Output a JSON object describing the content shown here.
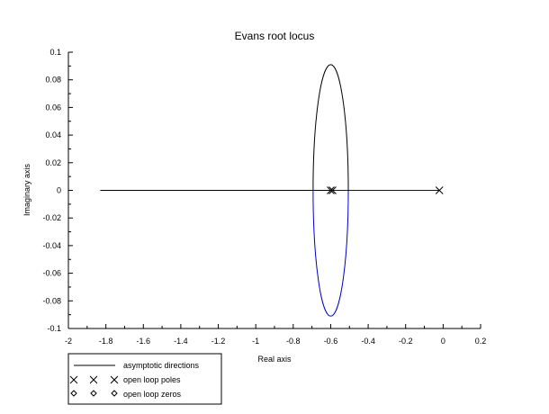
{
  "chart_data": {
    "type": "line",
    "title": "Evans root locus",
    "xlabel": "Real axis",
    "ylabel": "Imaginary axis",
    "xlim": [
      -2,
      0.2
    ],
    "ylim": [
      -0.1,
      0.1
    ],
    "x_ticks": [
      -2,
      -1.8,
      -1.6,
      -1.4,
      -1.2,
      -1,
      -0.8,
      -0.6,
      -0.4,
      -0.2,
      0,
      0.2
    ],
    "x_tick_labels": [
      "-2",
      "-1.8",
      "-1.6",
      "-1.4",
      "-1.2",
      "-1",
      "-0.8",
      "-0.6",
      "-0.4",
      "-0.2",
      "0",
      "0.2"
    ],
    "y_ticks": [
      -0.1,
      -0.08,
      -0.06,
      -0.04,
      -0.02,
      0,
      0.02,
      0.04,
      0.06,
      0.08,
      0.1
    ],
    "y_tick_labels": [
      "-0.1",
      "-0.08",
      "-0.06",
      "-0.04",
      "-0.02",
      "0",
      "0.02",
      "0.04",
      "0.06",
      "0.08",
      "0.1"
    ],
    "grid": false,
    "legend_position": "below-left",
    "legend": [
      {
        "label": "asymptotic directions",
        "marker": "line"
      },
      {
        "label": "open loop poles",
        "marker": "x"
      },
      {
        "label": "open loop zeros",
        "marker": "diamond"
      }
    ],
    "asymptote": {
      "x": [
        -1.83,
        -0.6
      ],
      "y": [
        0,
        0
      ]
    },
    "real_axis_branch": {
      "x": [
        -0.6,
        -0.02
      ],
      "y": [
        0,
        0
      ],
      "color": "#0000c8"
    },
    "locus_ellipse": {
      "center": [
        -0.6,
        0
      ],
      "semi_axis_real": 0.094,
      "semi_axis_imag": 0.091
    },
    "open_loop_poles": [
      {
        "x": -0.6,
        "y": 0
      },
      {
        "x": -0.59,
        "y": 0
      },
      {
        "x": -0.02,
        "y": 0
      }
    ],
    "colors": {
      "upper_branch": "#000000",
      "lower_branch": "#0000c8",
      "axis": "#000000"
    }
  }
}
